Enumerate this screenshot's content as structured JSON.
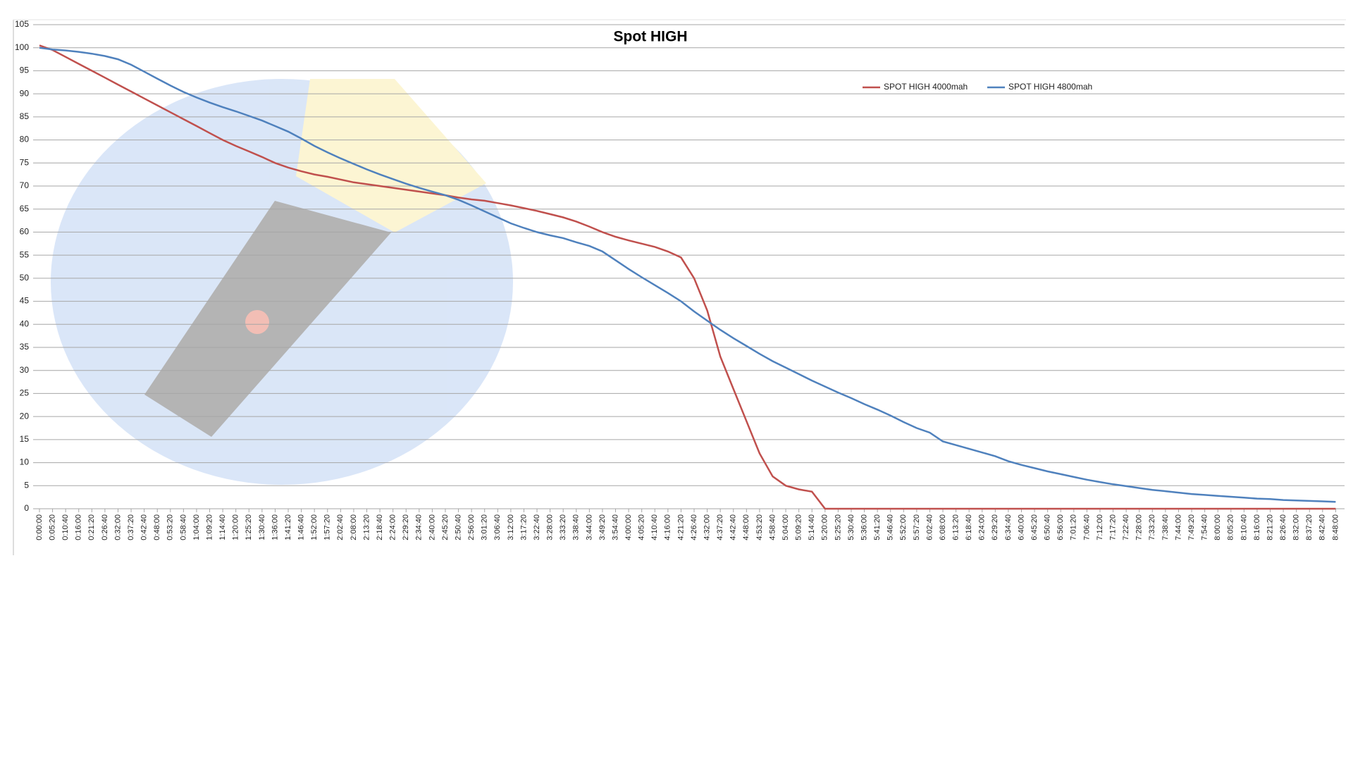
{
  "chart_data": {
    "type": "line",
    "title": "Spot HIGH",
    "categories": [
      "0:00:00",
      "0:05:20",
      "0:10:40",
      "0:16:00",
      "0:21:20",
      "0:26:40",
      "0:32:00",
      "0:37:20",
      "0:42:40",
      "0:48:00",
      "0:53:20",
      "0:58:40",
      "1:04:00",
      "1:09:20",
      "1:14:40",
      "1:20:00",
      "1:25:20",
      "1:30:40",
      "1:36:00",
      "1:41:20",
      "1:46:40",
      "1:52:00",
      "1:57:20",
      "2:02:40",
      "2:08:00",
      "2:13:20",
      "2:18:40",
      "2:24:00",
      "2:29:20",
      "2:34:40",
      "2:40:00",
      "2:45:20",
      "2:50:40",
      "2:56:00",
      "3:01:20",
      "3:06:40",
      "3:12:00",
      "3:17:20",
      "3:22:40",
      "3:28:00",
      "3:33:20",
      "3:38:40",
      "3:44:00",
      "3:49:20",
      "3:54:40",
      "4:00:00",
      "4:05:20",
      "4:10:40",
      "4:16:00",
      "4:21:20",
      "4:26:40",
      "4:32:00",
      "4:37:20",
      "4:42:40",
      "4:48:00",
      "4:53:20",
      "4:58:40",
      "5:04:00",
      "5:09:20",
      "5:14:40",
      "5:20:00",
      "5:25:20",
      "5:30:40",
      "5:36:00",
      "5:41:20",
      "5:46:40",
      "5:52:00",
      "5:57:20",
      "6:02:40",
      "6:08:00",
      "6:13:20",
      "6:18:40",
      "6:24:00",
      "6:29:20",
      "6:34:40",
      "6:40:00",
      "6:45:20",
      "6:50:40",
      "6:56:00",
      "7:01:20",
      "7:06:40",
      "7:12:00",
      "7:17:20",
      "7:22:40",
      "7:28:00",
      "7:33:20",
      "7:38:40",
      "7:44:00",
      "7:49:20",
      "7:54:40",
      "8:00:00",
      "8:05:20",
      "8:10:40",
      "8:16:00",
      "8:21:20",
      "8:26:40",
      "8:32:00",
      "8:37:20",
      "8:42:40",
      "8:48:00"
    ],
    "series": [
      {
        "name": "SPOT HIGH 4000mah",
        "color": "#c0504d",
        "values": [
          100.5,
          99.5,
          98,
          96.5,
          95,
          93.5,
          92,
          90.5,
          89,
          87.5,
          86,
          84.5,
          83,
          81.5,
          80,
          78.7,
          77.5,
          76.3,
          75,
          74,
          73.2,
          72.5,
          72,
          71.4,
          70.8,
          70.4,
          70,
          69.6,
          69.2,
          68.8,
          68.4,
          68,
          67.5,
          67.1,
          66.8,
          66.3,
          65.8,
          65.2,
          64.6,
          63.9,
          63.2,
          62.3,
          61.2,
          60,
          59,
          58.2,
          57.5,
          56.8,
          55.8,
          54.5,
          50,
          43,
          33,
          26,
          19,
          12,
          7,
          5,
          4.2,
          3.7,
          0,
          0,
          0,
          0,
          0,
          0,
          0,
          0,
          0,
          0,
          0,
          0,
          0,
          0,
          0,
          0,
          0,
          0,
          0,
          0,
          0,
          0,
          0,
          0,
          0,
          0,
          0,
          0,
          0,
          0,
          0,
          0,
          0,
          0,
          0,
          0,
          0,
          0,
          0,
          0
        ]
      },
      {
        "name": "SPOT HIGH 4800mah",
        "color": "#4f81bd",
        "values": [
          100,
          99.6,
          99.4,
          99.1,
          98.7,
          98.2,
          97.5,
          96.3,
          94.8,
          93.3,
          91.8,
          90.4,
          89.2,
          88.1,
          87.1,
          86.2,
          85.2,
          84.2,
          83,
          81.8,
          80.3,
          78.7,
          77.3,
          76,
          74.8,
          73.6,
          72.5,
          71.5,
          70.5,
          69.6,
          68.8,
          68,
          67,
          65.8,
          64.5,
          63.2,
          61.9,
          60.9,
          60,
          59.3,
          58.7,
          57.8,
          57,
          55.8,
          53.9,
          52,
          50.2,
          48.5,
          46.8,
          45,
          42.8,
          40.8,
          38.8,
          37,
          35.3,
          33.6,
          32,
          30.6,
          29.2,
          27.8,
          26.5,
          25.2,
          24,
          22.7,
          21.5,
          20.2,
          18.8,
          17.5,
          16.5,
          14.6,
          13.8,
          13,
          12.2,
          11.4,
          10.3,
          9.5,
          8.8,
          8.1,
          7.5,
          6.9,
          6.3,
          5.8,
          5.3,
          4.9,
          4.5,
          4.1,
          3.8,
          3.5,
          3.2,
          3,
          2.8,
          2.6,
          2.4,
          2.2,
          2.1,
          1.9,
          1.8,
          1.7,
          1.6,
          1.5
        ]
      }
    ],
    "ylim": [
      0,
      105
    ],
    "yticks": [
      0,
      5,
      10,
      15,
      20,
      25,
      30,
      35,
      40,
      45,
      50,
      55,
      60,
      65,
      70,
      75,
      80,
      85,
      90,
      95,
      100,
      105
    ],
    "grid": true
  }
}
